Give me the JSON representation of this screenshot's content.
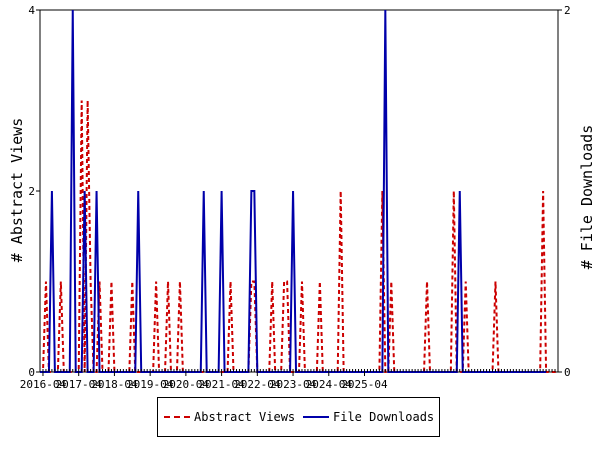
{
  "chart_data": {
    "type": "line",
    "x_labels": [
      "2016-04",
      "2017-04",
      "2018-04",
      "2019-04",
      "2020-04",
      "2021-04",
      "2022-04",
      "2023-04",
      "2024-04",
      "2025-04"
    ],
    "months_start": "2016-03",
    "ylabel_left": "# Abstract Views",
    "ylabel_right": "# File Downloads",
    "ylim_left": [
      0,
      4
    ],
    "ylim_right": [
      0,
      2
    ],
    "yticks_left": [
      0,
      2,
      4
    ],
    "yticks_right": [
      0,
      2
    ],
    "legend_placement": "bottom",
    "series": [
      {
        "name": "Abstract Views",
        "axis": "left",
        "color": "#cc0000",
        "style": "dashed",
        "values": [
          0,
          0,
          1,
          0,
          0,
          0,
          0,
          1,
          0,
          0,
          0,
          0,
          0,
          0,
          3,
          0,
          3,
          1,
          0,
          0,
          1,
          0,
          0,
          0,
          1,
          0,
          0,
          0,
          0,
          0,
          0,
          1,
          0,
          0,
          0,
          0,
          0,
          0,
          0,
          1,
          0,
          0,
          0,
          1,
          0,
          0,
          0,
          1,
          0,
          0,
          0,
          0,
          0,
          0,
          0,
          0,
          0,
          0,
          0,
          0,
          0,
          0,
          0,
          0,
          1,
          0,
          0,
          0,
          0,
          0,
          0,
          1,
          1,
          0,
          0,
          0,
          0,
          0,
          1,
          0,
          0,
          0,
          1,
          1,
          0,
          0,
          0,
          0,
          1,
          0,
          0,
          0,
          0,
          0,
          1,
          0,
          0,
          0,
          0,
          0,
          0,
          2,
          0,
          0,
          0,
          0,
          0,
          0,
          0,
          0,
          0,
          0,
          0,
          0,
          0,
          2,
          0,
          0,
          1,
          0,
          0,
          0,
          0,
          0,
          0,
          0,
          0,
          0,
          0,
          0,
          1,
          0,
          0,
          0,
          0,
          0,
          0,
          0,
          0,
          2,
          0,
          0,
          0,
          1,
          0,
          0,
          0,
          0,
          0,
          0,
          0,
          0,
          0,
          1,
          0,
          0,
          0,
          0,
          0,
          0,
          0,
          0,
          0,
          0,
          0,
          0,
          0,
          0,
          0,
          2,
          0,
          0,
          0,
          0,
          0
        ]
      },
      {
        "name": "File Downloads",
        "axis": "right",
        "color": "#0000aa",
        "style": "solid",
        "values": [
          0,
          0,
          0,
          0,
          1,
          0,
          0,
          0,
          0,
          0,
          0,
          2,
          0,
          0,
          0,
          1,
          0,
          0,
          0,
          1,
          0,
          0,
          0,
          0,
          0,
          0,
          0,
          0,
          0,
          0,
          0,
          0,
          0,
          1,
          0,
          0,
          0,
          0,
          0,
          0,
          0,
          0,
          0,
          0,
          0,
          0,
          0,
          0,
          0,
          0,
          0,
          0,
          0,
          0,
          0,
          1,
          0,
          0,
          0,
          0,
          0,
          1,
          0,
          0,
          0,
          0,
          0,
          0,
          0,
          0,
          0,
          1,
          1,
          0,
          0,
          0,
          0,
          0,
          0,
          0,
          0,
          0,
          0,
          0,
          0,
          1,
          0,
          0,
          0,
          0,
          0,
          0,
          0,
          0,
          0,
          0,
          0,
          0,
          0,
          0,
          0,
          0,
          0,
          0,
          0,
          0,
          0,
          0,
          0,
          0,
          0,
          0,
          0,
          0,
          0,
          0,
          2,
          0,
          0,
          0,
          0,
          0,
          0,
          0,
          0,
          0,
          0,
          0,
          0,
          0,
          0,
          0,
          0,
          0,
          0,
          0,
          0,
          0,
          0,
          0,
          0,
          1,
          0,
          0,
          0,
          0,
          0,
          0,
          0,
          0,
          0,
          0,
          0,
          0,
          0,
          0,
          0,
          0,
          0,
          0,
          0,
          0,
          0,
          0,
          0,
          0,
          0,
          0,
          0,
          0,
          0
        ]
      }
    ]
  }
}
